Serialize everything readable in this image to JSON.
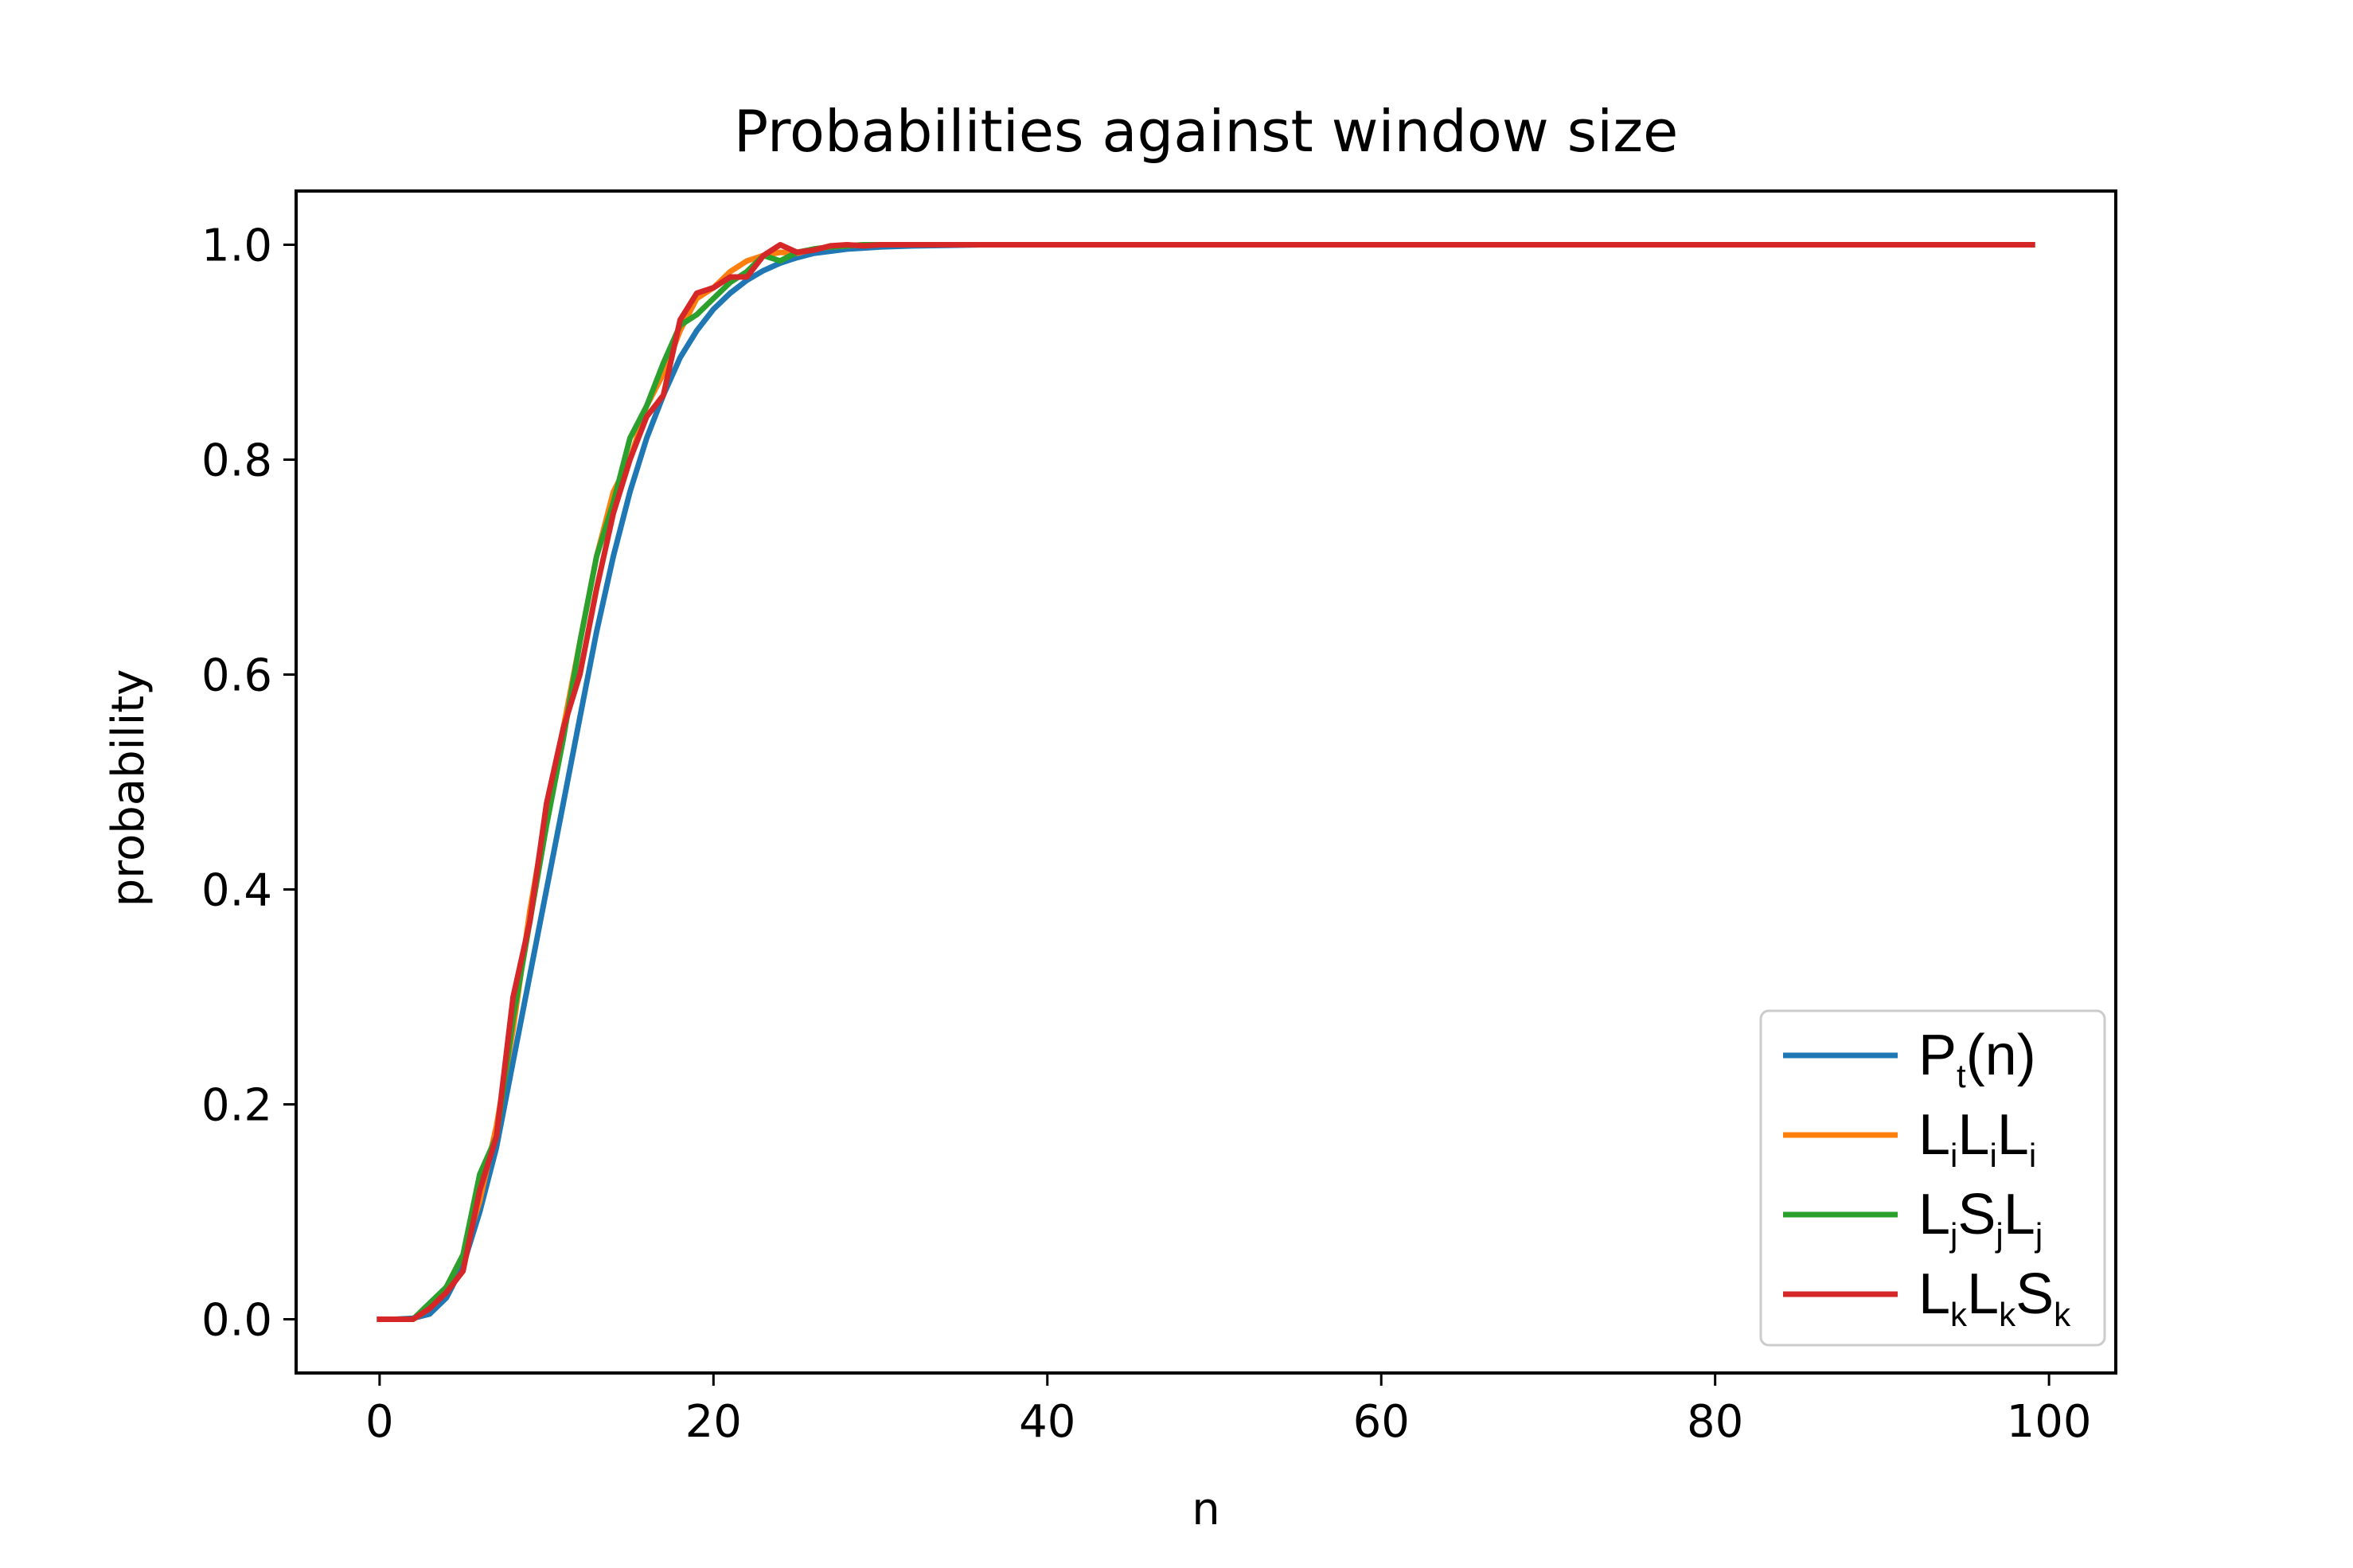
{
  "chart_data": {
    "type": "line",
    "title": "Probabilities against window size",
    "xlabel": "n",
    "ylabel": "probability",
    "xlim": [
      -5,
      104
    ],
    "ylim": [
      -0.05,
      1.05
    ],
    "xticks": [
      0,
      20,
      40,
      60,
      80,
      100
    ],
    "xtick_labels": [
      "0",
      "20",
      "40",
      "60",
      "80",
      "100"
    ],
    "yticks": [
      0.0,
      0.2,
      0.4,
      0.6,
      0.8,
      1.0
    ],
    "ytick_labels": [
      "0.0",
      "0.2",
      "0.4",
      "0.6",
      "0.8",
      "1.0"
    ],
    "grid": false,
    "legend_position": "lower-right",
    "series": [
      {
        "name": "P_t(n)",
        "legend": {
          "base": [
            "P"
          ],
          "subs": [
            "t"
          ],
          "tail": "(n)"
        },
        "color": "#1f77b4",
        "x": [
          0,
          1,
          2,
          3,
          4,
          5,
          6,
          7,
          8,
          9,
          10,
          11,
          12,
          13,
          14,
          15,
          16,
          17,
          18,
          19,
          20,
          21,
          22,
          23,
          24,
          25,
          26,
          27,
          28,
          29,
          30,
          32,
          34,
          36,
          38,
          40,
          45,
          50,
          60,
          70,
          80,
          90,
          99
        ],
        "y": [
          0.0,
          0.0,
          0.001,
          0.005,
          0.02,
          0.05,
          0.1,
          0.16,
          0.24,
          0.32,
          0.4,
          0.48,
          0.56,
          0.64,
          0.71,
          0.77,
          0.82,
          0.86,
          0.895,
          0.92,
          0.94,
          0.955,
          0.967,
          0.976,
          0.983,
          0.988,
          0.992,
          0.994,
          0.996,
          0.997,
          0.998,
          0.999,
          0.9995,
          1.0,
          1.0,
          1.0,
          1.0,
          1.0,
          1.0,
          1.0,
          1.0,
          1.0,
          1.0
        ]
      },
      {
        "name": "LiLiLi",
        "legend": {
          "base": [
            "L",
            "L",
            "L"
          ],
          "subs": [
            "i",
            "i",
            "i"
          ],
          "tail": ""
        },
        "color": "#ff7f0e",
        "x": [
          0,
          1,
          2,
          3,
          4,
          5,
          6,
          7,
          8,
          9,
          10,
          11,
          12,
          13,
          14,
          15,
          16,
          17,
          18,
          19,
          20,
          21,
          22,
          23,
          24,
          25,
          26,
          27,
          28,
          29,
          30,
          32,
          35,
          40,
          50,
          60,
          70,
          80,
          90,
          99
        ],
        "y": [
          0.0,
          0.0,
          0.0,
          0.01,
          0.03,
          0.06,
          0.11,
          0.18,
          0.27,
          0.38,
          0.47,
          0.55,
          0.63,
          0.71,
          0.77,
          0.8,
          0.85,
          0.88,
          0.92,
          0.95,
          0.96,
          0.975,
          0.985,
          0.99,
          0.993,
          0.992,
          0.996,
          0.998,
          0.999,
          1.0,
          1.0,
          1.0,
          1.0,
          1.0,
          1.0,
          1.0,
          1.0,
          1.0,
          1.0,
          1.0
        ]
      },
      {
        "name": "LjSjLj",
        "legend": {
          "base": [
            "L",
            "S",
            "L"
          ],
          "subs": [
            "j",
            "j",
            "j"
          ],
          "tail": ""
        },
        "color": "#2ca02c",
        "x": [
          0,
          1,
          2,
          3,
          4,
          5,
          6,
          7,
          8,
          9,
          10,
          11,
          12,
          13,
          14,
          15,
          16,
          17,
          18,
          19,
          20,
          21,
          22,
          23,
          24,
          25,
          26,
          27,
          28,
          29,
          30,
          32,
          35,
          40,
          50,
          60,
          70,
          80,
          90,
          99
        ],
        "y": [
          0.0,
          0.0,
          0.0,
          0.015,
          0.03,
          0.06,
          0.135,
          0.17,
          0.28,
          0.37,
          0.46,
          0.54,
          0.63,
          0.71,
          0.76,
          0.82,
          0.85,
          0.89,
          0.925,
          0.935,
          0.95,
          0.965,
          0.975,
          0.99,
          0.985,
          0.993,
          0.996,
          0.998,
          0.999,
          1.0,
          1.0,
          1.0,
          1.0,
          1.0,
          1.0,
          1.0,
          1.0,
          1.0,
          1.0,
          1.0
        ]
      },
      {
        "name": "LkLkSk",
        "legend": {
          "base": [
            "L",
            "L",
            "S"
          ],
          "subs": [
            "k",
            "k",
            "k"
          ],
          "tail": ""
        },
        "color": "#d62728",
        "x": [
          0,
          1,
          2,
          3,
          4,
          5,
          6,
          7,
          8,
          9,
          10,
          11,
          12,
          13,
          14,
          15,
          16,
          17,
          18,
          19,
          20,
          21,
          22,
          23,
          24,
          25,
          26,
          27,
          28,
          29,
          30,
          32,
          35,
          40,
          50,
          60,
          70,
          80,
          90,
          99
        ],
        "y": [
          0.0,
          0.0,
          0.0,
          0.01,
          0.025,
          0.045,
          0.12,
          0.17,
          0.3,
          0.37,
          0.48,
          0.55,
          0.6,
          0.68,
          0.75,
          0.8,
          0.84,
          0.86,
          0.93,
          0.955,
          0.96,
          0.97,
          0.97,
          0.99,
          1.0,
          0.993,
          0.995,
          0.999,
          1.0,
          0.999,
          1.0,
          1.0,
          1.0,
          1.0,
          1.0,
          1.0,
          1.0,
          1.0,
          1.0,
          1.0
        ]
      }
    ]
  }
}
